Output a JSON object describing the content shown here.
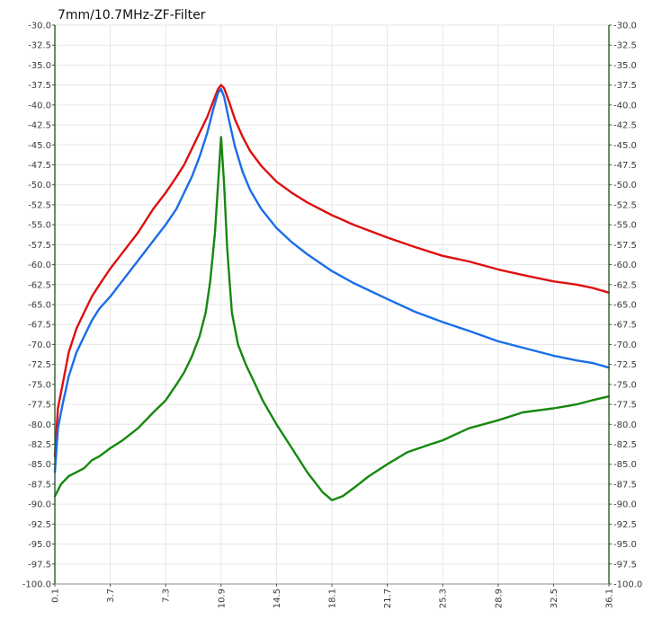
{
  "chart_data": {
    "type": "line",
    "title": "7mm/10.7MHz-ZF-Filter",
    "xlabel": "",
    "ylabel": "",
    "xlim": [
      0.1,
      36.1
    ],
    "ylim": [
      -100.0,
      -30.0
    ],
    "x_ticks": [
      "0.1",
      "3.7",
      "7.3",
      "10.9",
      "14.5",
      "18.1",
      "21.7",
      "25.3",
      "28.9",
      "32.5",
      "36.1"
    ],
    "y_ticks": [
      "-30.0",
      "-32.5",
      "-35.0",
      "-37.5",
      "-40.0",
      "-42.5",
      "-45.0",
      "-47.5",
      "-50.0",
      "-52.5",
      "-55.0",
      "-57.5",
      "-60.0",
      "-62.5",
      "-65.0",
      "-67.5",
      "-70.0",
      "-72.5",
      "-75.0",
      "-77.5",
      "-80.0",
      "-82.5",
      "-85.0",
      "-87.5",
      "-90.0",
      "-92.5",
      "-95.0",
      "-97.5",
      "-100.0"
    ],
    "grid": true,
    "dual_y_axis": true,
    "series": [
      {
        "color": "#dd1010",
        "x": [
          0.1,
          0.3,
          0.6,
          1.0,
          1.5,
          2.0,
          2.5,
          3.0,
          3.7,
          4.5,
          5.5,
          6.5,
          7.3,
          8.0,
          8.5,
          9.0,
          9.5,
          10.0,
          10.4,
          10.7,
          10.9,
          11.1,
          11.4,
          11.8,
          12.3,
          12.8,
          13.5,
          14.5,
          15.5,
          16.5,
          18.1,
          19.5,
          21.7,
          23.5,
          25.3,
          27.0,
          28.9,
          30.5,
          32.5,
          34.0,
          35.0,
          36.1
        ],
        "y": [
          -84.0,
          -78.0,
          -75.0,
          -71.0,
          -68.0,
          -66.0,
          -64.0,
          -62.5,
          -60.5,
          -58.5,
          -56.0,
          -53.0,
          -51.0,
          -49.0,
          -47.5,
          -45.5,
          -43.5,
          -41.5,
          -39.5,
          -38.0,
          -37.5,
          -37.9,
          -39.5,
          -41.8,
          -44.0,
          -45.8,
          -47.6,
          -49.6,
          -51.0,
          -52.2,
          -53.8,
          -55.0,
          -56.6,
          -57.8,
          -58.9,
          -59.6,
          -60.6,
          -61.3,
          -62.1,
          -62.5,
          -62.9,
          -63.5
        ]
      },
      {
        "color": "#1a6ee8",
        "x": [
          0.1,
          0.3,
          0.6,
          1.0,
          1.5,
          2.0,
          2.5,
          3.0,
          3.7,
          4.5,
          5.5,
          6.5,
          7.3,
          8.0,
          8.5,
          9.0,
          9.5,
          10.0,
          10.4,
          10.7,
          10.9,
          11.1,
          11.4,
          11.8,
          12.3,
          12.8,
          13.5,
          14.5,
          15.5,
          16.5,
          18.1,
          19.5,
          21.7,
          23.5,
          25.3,
          27.0,
          28.9,
          30.5,
          32.5,
          34.0,
          35.0,
          36.1
        ],
        "y": [
          -86.0,
          -80.5,
          -77.5,
          -74.0,
          -71.0,
          -69.0,
          -67.0,
          -65.5,
          -64.0,
          -62.0,
          -59.5,
          -57.0,
          -55.0,
          -53.0,
          -51.0,
          -49.0,
          -46.5,
          -43.5,
          -40.5,
          -38.5,
          -38.0,
          -39.0,
          -41.8,
          -45.2,
          -48.4,
          -50.7,
          -53.0,
          -55.4,
          -57.2,
          -58.7,
          -60.8,
          -62.3,
          -64.3,
          -65.9,
          -67.2,
          -68.3,
          -69.6,
          -70.4,
          -71.4,
          -72.0,
          -72.3,
          -72.9
        ]
      },
      {
        "color": "#16880e",
        "x": [
          0.1,
          0.5,
          1.0,
          1.5,
          2.0,
          2.5,
          3.0,
          3.7,
          4.5,
          5.5,
          6.5,
          7.3,
          8.0,
          8.5,
          9.0,
          9.5,
          9.9,
          10.2,
          10.5,
          10.7,
          10.9,
          11.1,
          11.3,
          11.6,
          12.0,
          12.5,
          13.0,
          13.6,
          14.5,
          15.5,
          16.5,
          17.5,
          18.1,
          18.8,
          19.5,
          20.5,
          21.7,
          23.0,
          24.5,
          25.3,
          27.0,
          28.9,
          30.5,
          32.5,
          34.0,
          35.0,
          36.1
        ],
        "y": [
          -89.0,
          -87.5,
          -86.5,
          -86.0,
          -85.5,
          -84.5,
          -84.0,
          -83.0,
          -82.0,
          -80.5,
          -78.5,
          -77.0,
          -75.0,
          -73.5,
          -71.5,
          -69.0,
          -66.0,
          -62.0,
          -56.0,
          -50.0,
          -44.0,
          -50.0,
          -58.0,
          -66.0,
          -70.0,
          -72.5,
          -74.5,
          -77.0,
          -80.0,
          -83.0,
          -86.0,
          -88.5,
          -89.5,
          -89.0,
          -88.0,
          -86.5,
          -85.0,
          -83.5,
          -82.5,
          -82.0,
          -80.5,
          -79.5,
          -78.5,
          -78.0,
          -77.5,
          -77.0,
          -76.5
        ]
      }
    ]
  }
}
